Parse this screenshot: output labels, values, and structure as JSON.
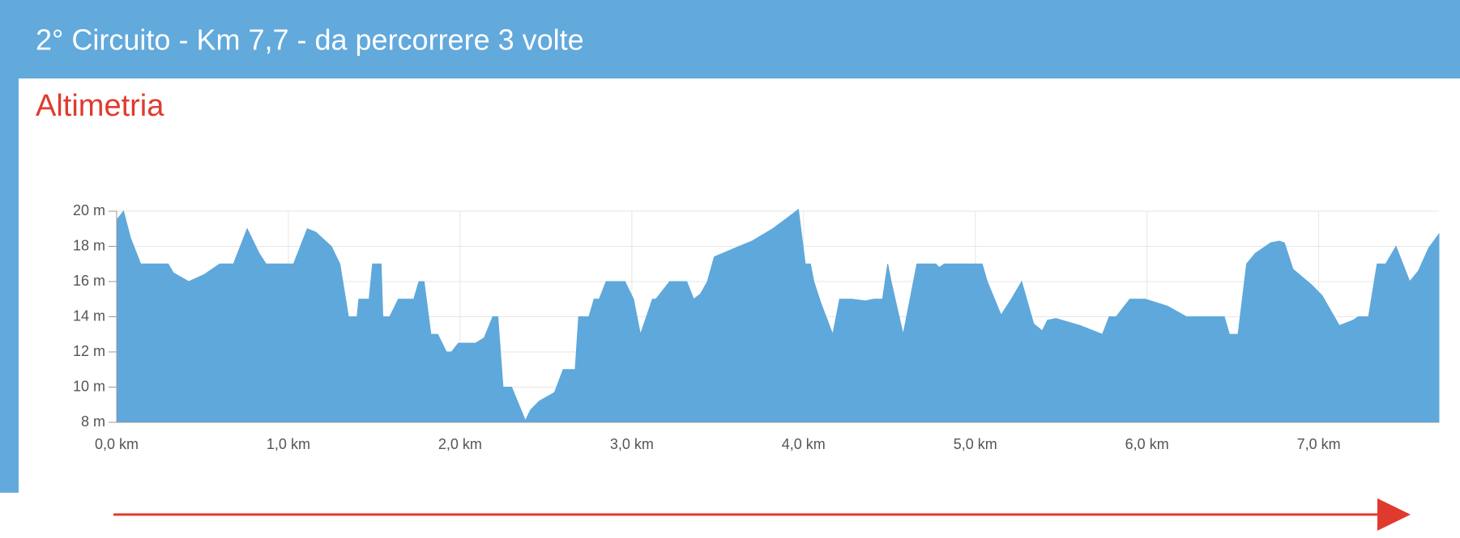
{
  "header": {
    "title": "2° Circuito - Km 7,7 - da percorrere 3 volte"
  },
  "section_title": "Altimetria",
  "chart_data": {
    "type": "area",
    "color": "#5fa8db",
    "grid": true,
    "x": [
      0,
      0.04,
      0.08,
      0.14,
      0.3,
      0.33,
      0.42,
      0.51,
      0.6,
      0.68,
      0.76,
      0.83,
      0.87,
      1.03,
      1.11,
      1.16,
      1.25,
      1.3,
      1.35,
      1.4,
      1.41,
      1.47,
      1.49,
      1.54,
      1.55,
      1.59,
      1.64,
      1.73,
      1.76,
      1.79,
      1.83,
      1.87,
      1.92,
      1.95,
      1.99,
      2.09,
      2.14,
      2.19,
      2.22,
      2.25,
      2.3,
      2.38,
      2.41,
      2.46,
      2.55,
      2.6,
      2.67,
      2.69,
      2.75,
      2.78,
      2.81,
      2.85,
      2.96,
      3.01,
      3.05,
      3.12,
      3.14,
      3.22,
      3.32,
      3.36,
      3.4,
      3.44,
      3.48,
      3.6,
      3.7,
      3.82,
      3.93,
      3.97,
      4.01,
      4.04,
      4.06,
      4.1,
      4.17,
      4.21,
      4.28,
      4.36,
      4.41,
      4.46,
      4.49,
      4.51,
      4.58,
      4.66,
      4.77,
      4.79,
      4.82,
      5.04,
      5.07,
      5.15,
      5.21,
      5.27,
      5.34,
      5.39,
      5.42,
      5.47,
      5.61,
      5.74,
      5.78,
      5.82,
      5.9,
      5.99,
      6.12,
      6.23,
      6.45,
      6.48,
      6.53,
      6.58,
      6.63,
      6.72,
      6.77,
      6.8,
      6.85,
      6.96,
      7.02,
      7.12,
      7.2,
      7.23,
      7.29,
      7.34,
      7.39,
      7.45,
      7.53,
      7.58,
      7.64,
      7.7
    ],
    "values": [
      19.5,
      20,
      18.5,
      17,
      17,
      16.5,
      16,
      16.4,
      17,
      17,
      19,
      17.6,
      17,
      17,
      19,
      18.8,
      18,
      17,
      14,
      14,
      15,
      15,
      17,
      17,
      14,
      14,
      15,
      15,
      16,
      16,
      13,
      13,
      12,
      12,
      12.5,
      12.5,
      12.8,
      14,
      14,
      10,
      10,
      8.1,
      8.7,
      9.2,
      9.7,
      11,
      11,
      14,
      14,
      15,
      15,
      16,
      16,
      15,
      13,
      15,
      15,
      16,
      16,
      15,
      15.3,
      16,
      17.4,
      17.9,
      18.3,
      19,
      19.8,
      20.1,
      17,
      17,
      16,
      14.8,
      13,
      15,
      15,
      14.9,
      15,
      15,
      17,
      16,
      13,
      17,
      17,
      16.8,
      17,
      17,
      16,
      14.1,
      15,
      16,
      13.6,
      13.2,
      13.8,
      13.9,
      13.5,
      13,
      14,
      14,
      15,
      15,
      14.6,
      14,
      14,
      13,
      13,
      17,
      17.6,
      18.2,
      18.3,
      18.2,
      16.7,
      15.8,
      15.2,
      13.5,
      13.8,
      14,
      14,
      17,
      17,
      18,
      16,
      16.6,
      17.9,
      18.7
    ],
    "xlim": [
      0,
      7.7
    ],
    "ylim": [
      8,
      20
    ],
    "xticks": [
      {
        "value": 0,
        "label": "0,0 km"
      },
      {
        "value": 1,
        "label": "1,0 km"
      },
      {
        "value": 2,
        "label": "2,0 km"
      },
      {
        "value": 3,
        "label": "3,0 km"
      },
      {
        "value": 4,
        "label": "4,0 km"
      },
      {
        "value": 5,
        "label": "5,0 km"
      },
      {
        "value": 6,
        "label": "6,0 km"
      },
      {
        "value": 7,
        "label": "7,0 km"
      }
    ],
    "yticks": [
      {
        "value": 8,
        "label": "8 m"
      },
      {
        "value": 10,
        "label": "10 m"
      },
      {
        "value": 12,
        "label": "12 m"
      },
      {
        "value": 14,
        "label": "14 m"
      },
      {
        "value": 16,
        "label": "16 m"
      },
      {
        "value": 18,
        "label": "18 m"
      },
      {
        "value": 20,
        "label": "20 m"
      }
    ]
  }
}
